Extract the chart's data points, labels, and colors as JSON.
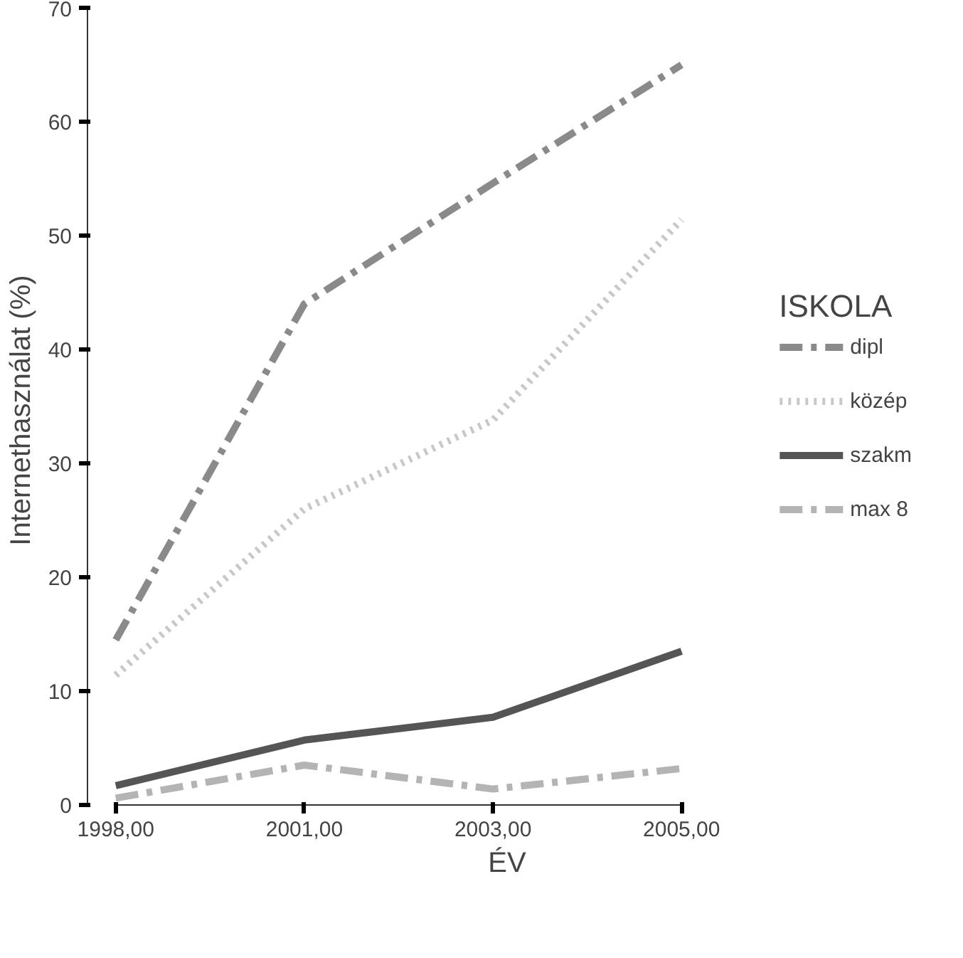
{
  "chart_data": {
    "type": "line",
    "xlabel": "ÉV",
    "ylabel": "Internethasználat  (%)",
    "legend_title": "ISKOLA",
    "legend": "right",
    "grid": false,
    "categories": [
      "1998,00",
      "2001,00",
      "2003,00",
      "2005,00"
    ],
    "ylim": [
      0,
      70
    ],
    "yticks": [
      0,
      10,
      20,
      30,
      40,
      50,
      60,
      70
    ],
    "series": [
      {
        "name": "dipl",
        "color": "#8a8a8a",
        "line_style": "dashdot",
        "values": [
          14.5,
          44,
          54.6,
          65
        ]
      },
      {
        "name": "közép",
        "color": "#c8c8c8",
        "line_style": "dotted",
        "values": [
          11.4,
          26,
          33.8,
          51.4
        ]
      },
      {
        "name": "szakm",
        "color": "#555555",
        "line_style": "solid",
        "values": [
          1.7,
          5.7,
          7.7,
          13.5
        ]
      },
      {
        "name": "max 8",
        "color": "#b4b4b4",
        "line_style": "dashdot",
        "values": [
          0.6,
          3.5,
          1.4,
          3.2
        ]
      }
    ]
  }
}
